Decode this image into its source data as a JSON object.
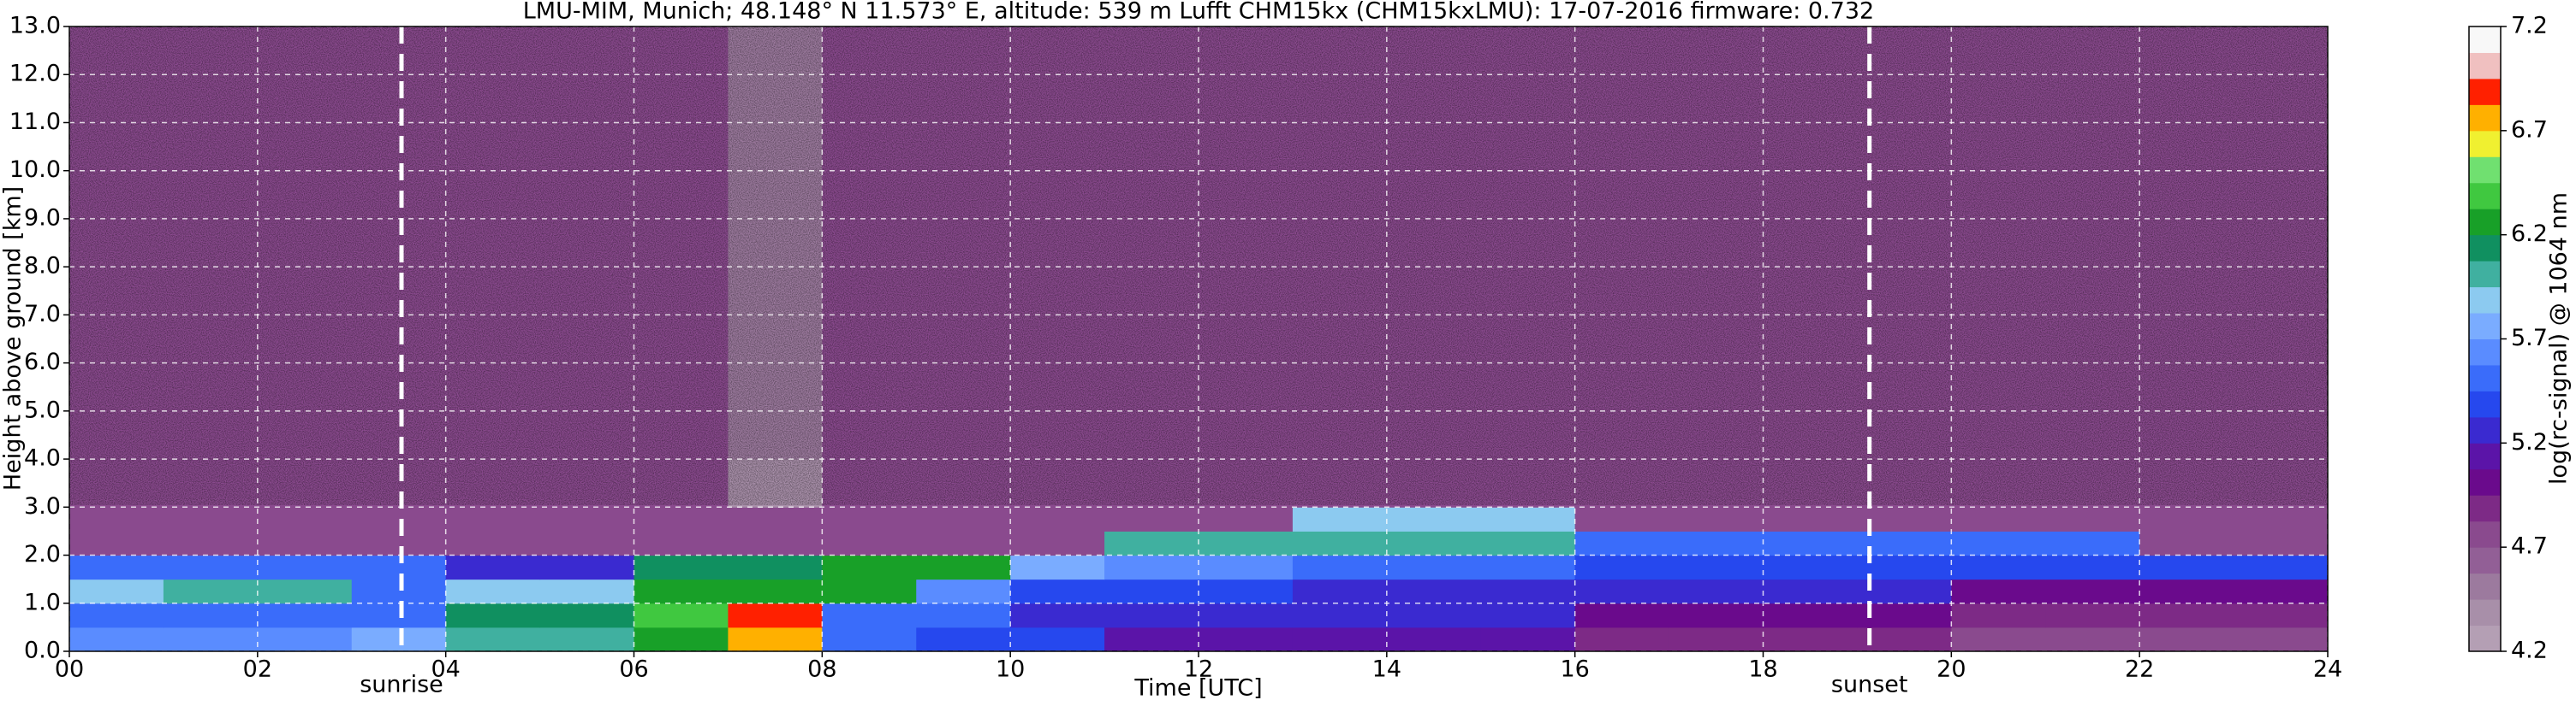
{
  "chart_data": {
    "type": "heatmap",
    "title": "LMU-MIM, Munich; 48.148° N 11.573° E, altitude: 539 m    Lufft CHM15kx (CHM15kxLMU): 17-07-2016    firmware: 0.732",
    "xlabel": "Time [UTC]",
    "ylabel": "Height above ground [km]",
    "colorbar_label": "log(rc-signal) @ 1064 nm",
    "x": [
      0,
      1,
      2,
      3,
      4,
      5,
      6,
      7,
      8,
      9,
      10,
      11,
      12,
      13,
      14,
      15,
      16,
      17,
      18,
      19,
      20,
      21,
      22,
      23,
      24
    ],
    "y": [
      0,
      0.5,
      1,
      1.5,
      2,
      2.5,
      3,
      4,
      13
    ],
    "values": [
      [
        5.6,
        5.6,
        5.6,
        5.7,
        6.0,
        6.0,
        6.3,
        6.8,
        5.5,
        5.4,
        5.4,
        5.1,
        5.1,
        5.1,
        5.1,
        5.1,
        4.9,
        4.9,
        4.9,
        4.9,
        4.8,
        4.8,
        4.8,
        4.8
      ],
      [
        5.5,
        5.5,
        5.5,
        5.5,
        6.1,
        6.1,
        6.4,
        6.9,
        5.5,
        5.5,
        5.3,
        5.2,
        5.2,
        5.2,
        5.2,
        5.2,
        5.0,
        5.0,
        5.0,
        5.0,
        4.9,
        4.9,
        4.9,
        4.9
      ],
      [
        5.9,
        6.0,
        6.0,
        5.5,
        5.9,
        5.9,
        6.3,
        6.3,
        6.3,
        5.6,
        5.4,
        5.4,
        5.4,
        5.3,
        5.3,
        5.3,
        5.2,
        5.2,
        5.2,
        5.2,
        5.0,
        5.0,
        5.0,
        5.0
      ],
      [
        5.5,
        5.5,
        5.5,
        5.5,
        5.3,
        5.3,
        6.1,
        6.1,
        6.2,
        6.2,
        5.8,
        5.6,
        5.6,
        5.5,
        5.5,
        5.5,
        5.4,
        5.4,
        5.4,
        5.4,
        5.4,
        5.4,
        5.4,
        5.4
      ],
      [
        4.7,
        4.7,
        4.7,
        4.7,
        4.7,
        4.7,
        4.7,
        4.7,
        4.7,
        4.7,
        4.7,
        6.0,
        6.0,
        6.0,
        6.0,
        6.0,
        5.5,
        5.5,
        5.5,
        5.5,
        5.5,
        5.5,
        4.7,
        4.7
      ],
      [
        4.7,
        4.7,
        4.7,
        4.7,
        4.7,
        4.7,
        4.7,
        4.7,
        4.7,
        4.7,
        4.7,
        4.7,
        4.7,
        5.9,
        5.9,
        5.9,
        4.7,
        4.7,
        4.7,
        4.7,
        4.7,
        4.7,
        4.7,
        4.7
      ],
      [
        4.7,
        4.7,
        4.7,
        4.7,
        4.7,
        4.7,
        4.7,
        4.4,
        4.7,
        4.7,
        4.7,
        4.7,
        4.7,
        4.7,
        4.7,
        4.7,
        4.7,
        4.7,
        4.7,
        4.7,
        4.7,
        4.7,
        4.7,
        4.7
      ],
      [
        4.7,
        4.7,
        4.7,
        4.7,
        4.7,
        4.7,
        4.7,
        4.5,
        4.7,
        4.7,
        4.7,
        4.7,
        4.7,
        4.7,
        4.7,
        4.7,
        4.7,
        4.7,
        4.7,
        4.7,
        4.7,
        4.7,
        4.7,
        4.7
      ]
    ],
    "xlim": [
      0,
      24
    ],
    "xticks": [
      {
        "value": 0,
        "label": "00"
      },
      {
        "value": 2,
        "label": "02"
      },
      {
        "value": 4,
        "label": "04"
      },
      {
        "value": 6,
        "label": "06"
      },
      {
        "value": 8,
        "label": "08"
      },
      {
        "value": 10,
        "label": "10"
      },
      {
        "value": 12,
        "label": "12"
      },
      {
        "value": 14,
        "label": "14"
      },
      {
        "value": 16,
        "label": "16"
      },
      {
        "value": 18,
        "label": "18"
      },
      {
        "value": 20,
        "label": "20"
      },
      {
        "value": 22,
        "label": "22"
      },
      {
        "value": 24,
        "label": "24"
      }
    ],
    "ylim": [
      0,
      13
    ],
    "yticks": [
      {
        "value": 0,
        "label": "0.0"
      },
      {
        "value": 1,
        "label": "1.0"
      },
      {
        "value": 2,
        "label": "2.0"
      },
      {
        "value": 3,
        "label": "3.0"
      },
      {
        "value": 4,
        "label": "4.0"
      },
      {
        "value": 5,
        "label": "5.0"
      },
      {
        "value": 6,
        "label": "6.0"
      },
      {
        "value": 7,
        "label": "7.0"
      },
      {
        "value": 8,
        "label": "8.0"
      },
      {
        "value": 9,
        "label": "9.0"
      },
      {
        "value": 10,
        "label": "10.0"
      },
      {
        "value": 11,
        "label": "11.0"
      },
      {
        "value": 12,
        "label": "12.0"
      },
      {
        "value": 13,
        "label": "13.0"
      }
    ],
    "clim": [
      4.2,
      7.2
    ],
    "cticks": [
      4.2,
      4.7,
      5.2,
      5.7,
      6.2,
      6.7,
      7.2
    ],
    "colors": [
      "#b49fb4",
      "#a88fa9",
      "#9c7a9e",
      "#925f96",
      "#8a4a8e",
      "#7d2a86",
      "#6a0a8c",
      "#5b14a8",
      "#3a2ad0",
      "#2648ee",
      "#3a6cfa",
      "#5a8cff",
      "#7aacff",
      "#8ccaf0",
      "#40b0a0",
      "#109060",
      "#18a028",
      "#40c840",
      "#70e070",
      "#f0f030",
      "#ffb000",
      "#ff2000",
      "#f0c0c0",
      "#f8f8f8"
    ],
    "grid": true,
    "annotations": [
      {
        "x": 3.53,
        "label": "sunrise"
      },
      {
        "x": 19.13,
        "label": "sunset"
      }
    ]
  }
}
